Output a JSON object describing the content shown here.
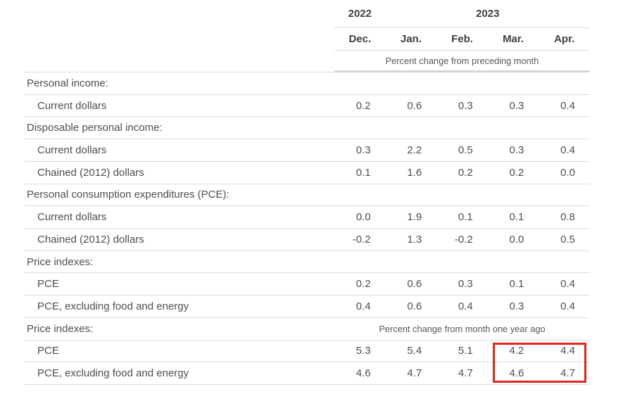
{
  "table": {
    "years": [
      {
        "label": "2022"
      },
      {
        "label": "2023"
      }
    ],
    "months": [
      "Dec.",
      "Jan.",
      "Feb.",
      "Mar.",
      "Apr."
    ],
    "unit_note_top": "Percent change from preceding month",
    "rows": [
      {
        "type": "section",
        "label": "Personal income:"
      },
      {
        "type": "data",
        "label": "Current dollars",
        "values": [
          "0.2",
          "0.6",
          "0.3",
          "0.3",
          "0.4"
        ]
      },
      {
        "type": "section",
        "label": "Disposable personal income:"
      },
      {
        "type": "data",
        "label": "Current dollars",
        "values": [
          "0.3",
          "2.2",
          "0.5",
          "0.3",
          "0.4"
        ]
      },
      {
        "type": "data",
        "label": "Chained (2012) dollars",
        "values": [
          "0.1",
          "1.6",
          "0.2",
          "0.2",
          "0.0"
        ]
      },
      {
        "type": "section",
        "label": "Personal consumption expenditures (PCE):"
      },
      {
        "type": "data",
        "label": "Current dollars",
        "values": [
          "0.0",
          "1.9",
          "0.1",
          "0.1",
          "0.8"
        ]
      },
      {
        "type": "data",
        "label": "Chained (2012) dollars",
        "values": [
          "-0.2",
          "1.3",
          "-0.2",
          "0.0",
          "0.5"
        ]
      },
      {
        "type": "section",
        "label": "Price indexes:"
      },
      {
        "type": "data",
        "label": "PCE",
        "values": [
          "0.2",
          "0.6",
          "0.3",
          "0.1",
          "0.4"
        ]
      },
      {
        "type": "data",
        "label": "PCE, excluding food and energy",
        "values": [
          "0.4",
          "0.6",
          "0.4",
          "0.3",
          "0.4"
        ]
      },
      {
        "type": "section",
        "label": "Price indexes:",
        "note": "Percent change from month one year ago"
      },
      {
        "type": "data",
        "label": "PCE",
        "values": [
          "5.3",
          "5.4",
          "5.1",
          "4.2",
          "4.4"
        ]
      },
      {
        "type": "data",
        "label": "PCE, excluding food and energy",
        "values": [
          "4.6",
          "4.7",
          "4.7",
          "4.6",
          "4.7"
        ]
      }
    ]
  },
  "highlight": {
    "color": "#e2241c",
    "columns": [
      "Mar.",
      "Apr."
    ],
    "rows": [
      "PCE",
      "PCE, excluding food and energy"
    ],
    "section": "Percent change from month one year ago"
  },
  "chart_data": {
    "type": "table",
    "title": "Personal income and PCE — percent changes",
    "column_groups": [
      "2022",
      "2023"
    ],
    "columns": [
      "Dec.",
      "Jan.",
      "Feb.",
      "Mar.",
      "Apr."
    ],
    "sections": [
      {
        "unit": "Percent change from preceding month",
        "rows": [
          {
            "group": "Personal income:",
            "label": "Current dollars",
            "values": [
              0.2,
              0.6,
              0.3,
              0.3,
              0.4
            ]
          },
          {
            "group": "Disposable personal income:",
            "label": "Current dollars",
            "values": [
              0.3,
              2.2,
              0.5,
              0.3,
              0.4
            ]
          },
          {
            "group": "Disposable personal income:",
            "label": "Chained (2012) dollars",
            "values": [
              0.1,
              1.6,
              0.2,
              0.2,
              0.0
            ]
          },
          {
            "group": "Personal consumption expenditures (PCE):",
            "label": "Current dollars",
            "values": [
              0.0,
              1.9,
              0.1,
              0.1,
              0.8
            ]
          },
          {
            "group": "Personal consumption expenditures (PCE):",
            "label": "Chained (2012) dollars",
            "values": [
              -0.2,
              1.3,
              -0.2,
              0.0,
              0.5
            ]
          },
          {
            "group": "Price indexes:",
            "label": "PCE",
            "values": [
              0.2,
              0.6,
              0.3,
              0.1,
              0.4
            ]
          },
          {
            "group": "Price indexes:",
            "label": "PCE, excluding food and energy",
            "values": [
              0.4,
              0.6,
              0.4,
              0.3,
              0.4
            ]
          }
        ]
      },
      {
        "unit": "Percent change from month one year ago",
        "rows": [
          {
            "group": "Price indexes:",
            "label": "PCE",
            "values": [
              5.3,
              5.4,
              5.1,
              4.2,
              4.4
            ]
          },
          {
            "group": "Price indexes:",
            "label": "PCE, excluding food and energy",
            "values": [
              4.6,
              4.7,
              4.7,
              4.6,
              4.7
            ]
          }
        ]
      }
    ]
  }
}
